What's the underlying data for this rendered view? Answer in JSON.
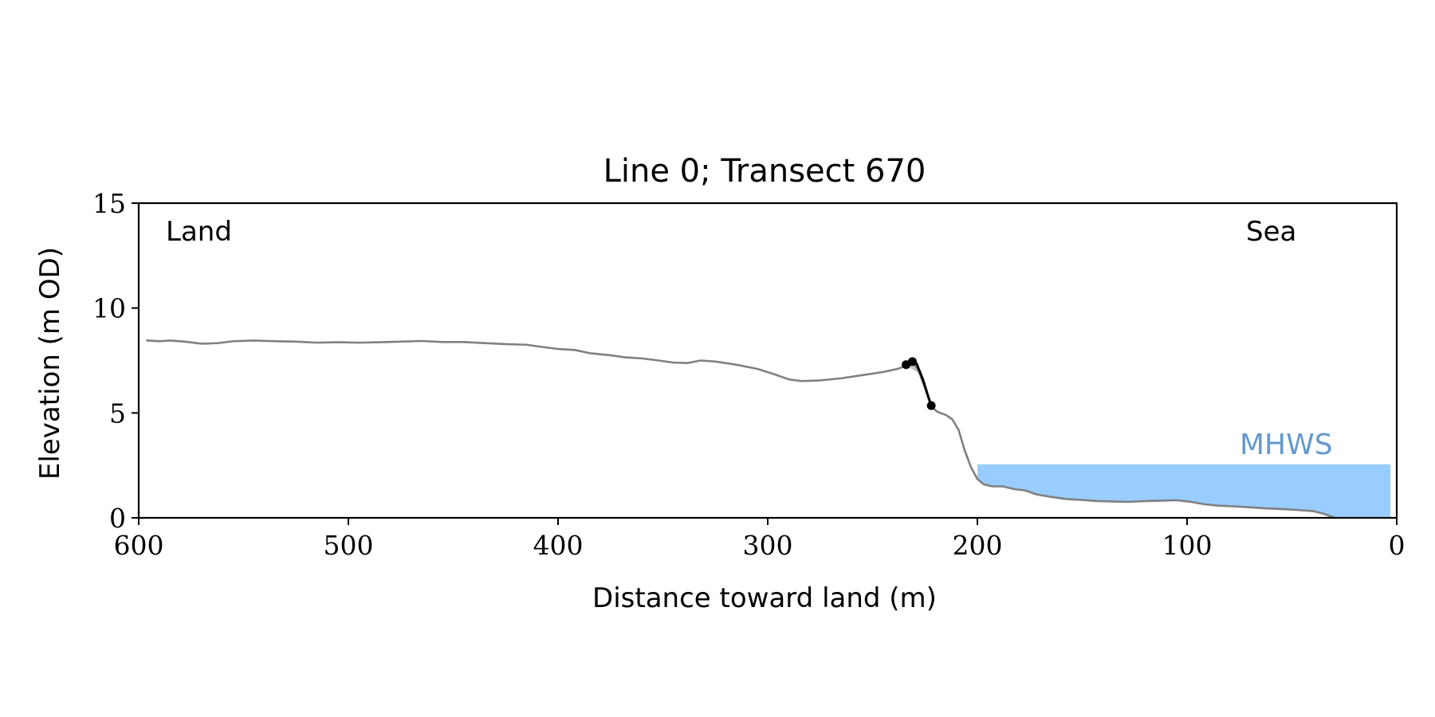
{
  "chart_data": {
    "type": "line",
    "title": "Line 0; Transect 670",
    "xlabel": "Distance toward land (m)",
    "ylabel": "Elevation (m OD)",
    "xlim": [
      600,
      0
    ],
    "ylim": [
      0,
      15
    ],
    "x_ticks": [
      "600",
      "500",
      "400",
      "300",
      "200",
      "100",
      "0"
    ],
    "y_ticks": [
      "0",
      "5",
      "10",
      "15"
    ],
    "grid": false,
    "annotations": {
      "land": "Land",
      "sea": "Sea",
      "mhws": "MHWS"
    },
    "mhws": {
      "elevation": 2.55,
      "x_from": 200,
      "x_to": 3,
      "color": "#99ccff",
      "label_color": "#6699cc"
    },
    "series": [
      {
        "role": "profile",
        "color": "#808080",
        "points": [
          [
            596,
            8.45
          ],
          [
            590,
            8.42
          ],
          [
            585,
            8.45
          ],
          [
            578,
            8.4
          ],
          [
            570,
            8.3
          ],
          [
            562,
            8.33
          ],
          [
            555,
            8.42
          ],
          [
            545,
            8.45
          ],
          [
            535,
            8.42
          ],
          [
            525,
            8.4
          ],
          [
            515,
            8.35
          ],
          [
            505,
            8.37
          ],
          [
            495,
            8.35
          ],
          [
            485,
            8.37
          ],
          [
            475,
            8.4
          ],
          [
            465,
            8.43
          ],
          [
            455,
            8.38
          ],
          [
            445,
            8.38
          ],
          [
            435,
            8.33
          ],
          [
            425,
            8.28
          ],
          [
            415,
            8.25
          ],
          [
            408,
            8.15
          ],
          [
            400,
            8.05
          ],
          [
            392,
            8.0
          ],
          [
            385,
            7.85
          ],
          [
            375,
            7.75
          ],
          [
            368,
            7.65
          ],
          [
            360,
            7.6
          ],
          [
            352,
            7.5
          ],
          [
            345,
            7.4
          ],
          [
            338,
            7.38
          ],
          [
            332,
            7.5
          ],
          [
            325,
            7.45
          ],
          [
            315,
            7.3
          ],
          [
            305,
            7.1
          ],
          [
            297,
            6.85
          ],
          [
            290,
            6.6
          ],
          [
            284,
            6.52
          ],
          [
            275,
            6.55
          ],
          [
            265,
            6.65
          ],
          [
            255,
            6.8
          ],
          [
            245,
            6.95
          ],
          [
            238,
            7.1
          ],
          [
            234,
            7.25
          ],
          [
            231,
            7.45
          ],
          [
            228,
            7.0
          ],
          [
            225,
            6.2
          ],
          [
            222,
            5.3
          ],
          [
            219,
            5.05
          ],
          [
            215,
            4.9
          ],
          [
            212,
            4.7
          ],
          [
            209,
            4.2
          ],
          [
            206,
            3.2
          ],
          [
            203,
            2.4
          ],
          [
            200,
            1.85
          ],
          [
            197,
            1.6
          ],
          [
            193,
            1.5
          ],
          [
            188,
            1.5
          ],
          [
            183,
            1.38
          ],
          [
            177,
            1.3
          ],
          [
            172,
            1.12
          ],
          [
            165,
            1.0
          ],
          [
            158,
            0.9
          ],
          [
            150,
            0.85
          ],
          [
            143,
            0.8
          ],
          [
            136,
            0.78
          ],
          [
            128,
            0.76
          ],
          [
            120,
            0.8
          ],
          [
            112,
            0.82
          ],
          [
            105,
            0.84
          ],
          [
            98,
            0.76
          ],
          [
            92,
            0.65
          ],
          [
            85,
            0.58
          ],
          [
            78,
            0.55
          ],
          [
            70,
            0.5
          ],
          [
            62,
            0.45
          ],
          [
            55,
            0.42
          ],
          [
            48,
            0.38
          ],
          [
            40,
            0.32
          ],
          [
            35,
            0.2
          ],
          [
            30,
            0.02
          ]
        ]
      },
      {
        "role": "cliff-top",
        "color": "#000000",
        "points": [
          [
            234,
            7.3
          ],
          [
            231,
            7.5
          ],
          [
            229,
            7.35
          ],
          [
            226,
            6.6
          ],
          [
            223.5,
            5.8
          ],
          [
            222,
            5.35
          ]
        ]
      }
    ],
    "markers": [
      [
        234,
        7.3
      ],
      [
        231,
        7.45
      ],
      [
        222,
        5.35
      ]
    ],
    "shaded_polygon": {
      "color": "#c8c8c8",
      "points": [
        [
          234,
          7.25
        ],
        [
          231,
          7.45
        ],
        [
          229,
          7.35
        ],
        [
          226,
          6.6
        ],
        [
          222,
          5.3
        ],
        [
          228,
          6.9
        ]
      ]
    }
  }
}
